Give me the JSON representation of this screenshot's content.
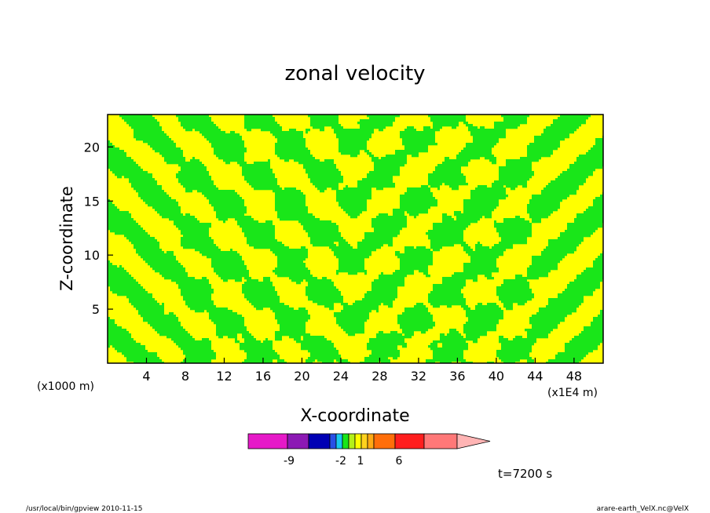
{
  "chart_data": {
    "type": "heatmap",
    "title": "zonal velocity",
    "xlabel": "X-coordinate",
    "ylabel": "Z-coordinate",
    "x_unit": "(x1E4 m)",
    "y_unit": "(x1000 m)",
    "xlim": [
      0,
      51
    ],
    "ylim": [
      0,
      23
    ],
    "x_ticks": [
      "4",
      "8",
      "12",
      "16",
      "20",
      "24",
      "28",
      "32",
      "36",
      "40",
      "44",
      "48"
    ],
    "y_ticks": [
      "5",
      "10",
      "15",
      "20"
    ],
    "field_colors": {
      "negative": "#19e619",
      "positive": "#ffff00",
      "contour": "#000000"
    },
    "colorbar": {
      "levels": [
        "-9",
        "-2",
        "1",
        "6"
      ],
      "colors": [
        "#e619c8",
        "#8c19b4",
        "#0000b4",
        "#2850e6",
        "#19c8f0",
        "#19e619",
        "#b4f019",
        "#ffff00",
        "#ffd21e",
        "#ffaa14",
        "#ff6e0a",
        "#ff1e1e",
        "#ff7878",
        "#ffb4b4"
      ]
    },
    "time_label": "t=7200 s"
  },
  "footer": {
    "left": "/usr/local/bin/gpview   2010-11-15",
    "right": "arare-earth_VelX.nc@VelX"
  }
}
